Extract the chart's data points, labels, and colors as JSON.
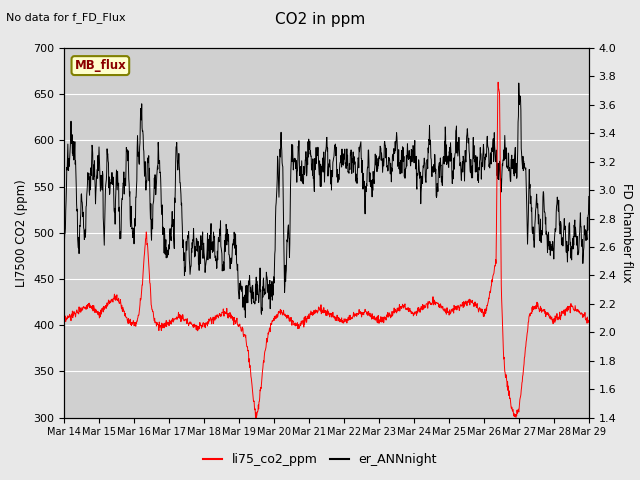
{
  "title": "CO2 in ppm",
  "top_left_text": "No data for f_FD_Flux",
  "ylabel_left": "LI7500 CO2 (ppm)",
  "ylabel_right": "FD Chamber flux",
  "ylim_left": [
    300,
    700
  ],
  "ylim_right": [
    1.4,
    4.0
  ],
  "yticks_left": [
    300,
    350,
    400,
    450,
    500,
    550,
    600,
    650,
    700
  ],
  "yticks_right": [
    1.4,
    1.6,
    1.8,
    2.0,
    2.2,
    2.4,
    2.6,
    2.8,
    3.0,
    3.2,
    3.4,
    3.6,
    3.8,
    4.0
  ],
  "xtick_labels": [
    "Mar 14",
    "Mar 15",
    "Mar 16",
    "Mar 17",
    "Mar 18",
    "Mar 19",
    "Mar 20",
    "Mar 21",
    "Mar 22",
    "Mar 23",
    "Mar 24",
    "Mar 25",
    "Mar 26",
    "Mar 27",
    "Mar 28",
    "Mar 29"
  ],
  "box_label": "MB_flux",
  "legend_entries": [
    "li75_co2_ppm",
    "er_ANNnight"
  ],
  "line_colors": [
    "red",
    "black"
  ],
  "background_color": "#e8e8e8",
  "plot_bg_color": "#d0d0d0",
  "grid_color": "white",
  "n_days": 15,
  "n_points": 1500,
  "red_t": [
    0,
    0.1,
    0.2,
    0.3,
    0.4,
    0.5,
    0.6,
    0.7,
    0.8,
    0.9,
    1.0,
    1.1,
    1.2,
    1.3,
    1.4,
    1.5,
    1.6,
    1.7,
    1.8,
    1.9,
    2.0,
    2.05,
    2.1,
    2.15,
    2.2,
    2.25,
    2.3,
    2.35,
    2.4,
    2.45,
    2.5,
    2.6,
    2.7,
    2.8,
    2.9,
    3.0,
    3.1,
    3.2,
    3.3,
    3.4,
    3.5,
    3.6,
    3.7,
    3.8,
    3.9,
    4.0,
    4.1,
    4.2,
    4.3,
    4.4,
    4.5,
    4.6,
    4.7,
    4.8,
    4.9,
    5.0,
    5.05,
    5.1,
    5.15,
    5.2,
    5.25,
    5.3,
    5.35,
    5.4,
    5.45,
    5.5,
    5.55,
    5.6,
    5.65,
    5.7,
    5.8,
    5.9,
    6.0,
    6.1,
    6.2,
    6.3,
    6.4,
    6.5,
    6.6,
    6.7,
    6.8,
    6.9,
    7.0,
    7.1,
    7.2,
    7.3,
    7.4,
    7.5,
    7.6,
    7.7,
    7.8,
    7.9,
    8.0,
    8.1,
    8.2,
    8.3,
    8.4,
    8.5,
    8.6,
    8.7,
    8.8,
    8.9,
    9.0,
    9.1,
    9.2,
    9.3,
    9.4,
    9.5,
    9.6,
    9.7,
    9.8,
    9.9,
    10.0,
    10.1,
    10.2,
    10.3,
    10.4,
    10.5,
    10.6,
    10.7,
    10.8,
    10.9,
    11.0,
    11.1,
    11.2,
    11.3,
    11.4,
    11.5,
    11.6,
    11.7,
    11.8,
    11.9,
    12.0,
    12.05,
    12.1,
    12.15,
    12.2,
    12.25,
    12.3,
    12.35,
    12.4,
    12.45,
    12.5,
    12.55,
    12.6,
    12.7,
    12.8,
    12.9,
    13.0,
    13.1,
    13.2,
    13.3,
    13.4,
    13.5,
    13.6,
    13.7,
    13.8,
    13.9,
    14.0,
    14.1,
    14.2,
    14.3,
    14.4,
    14.5,
    14.6,
    14.7,
    14.8,
    14.9,
    15.0
  ],
  "red_v": [
    405,
    407,
    410,
    412,
    415,
    418,
    420,
    422,
    420,
    415,
    410,
    415,
    420,
    425,
    428,
    430,
    425,
    415,
    408,
    403,
    400,
    402,
    405,
    415,
    430,
    450,
    480,
    500,
    480,
    450,
    420,
    405,
    400,
    398,
    400,
    402,
    405,
    408,
    410,
    408,
    405,
    402,
    400,
    398,
    400,
    400,
    402,
    405,
    408,
    410,
    412,
    415,
    412,
    408,
    404,
    400,
    398,
    395,
    390,
    385,
    375,
    360,
    345,
    325,
    310,
    300,
    310,
    325,
    340,
    360,
    385,
    400,
    408,
    412,
    415,
    412,
    408,
    405,
    402,
    400,
    402,
    405,
    410,
    412,
    415,
    418,
    416,
    414,
    412,
    410,
    408,
    406,
    404,
    406,
    408,
    410,
    412,
    414,
    415,
    413,
    410,
    407,
    405,
    406,
    408,
    410,
    412,
    415,
    418,
    420,
    418,
    415,
    412,
    415,
    418,
    420,
    422,
    424,
    425,
    423,
    420,
    416,
    413,
    415,
    418,
    420,
    422,
    424,
    425,
    423,
    420,
    416,
    413,
    415,
    420,
    430,
    440,
    450,
    460,
    470,
    660,
    650,
    440,
    380,
    350,
    330,
    310,
    300,
    310,
    340,
    380,
    410,
    418,
    420,
    418,
    415,
    412,
    408,
    405,
    408,
    412,
    415,
    418,
    420,
    418,
    415,
    412,
    408,
    405
  ],
  "black_t": [
    0,
    0.05,
    0.1,
    0.15,
    0.2,
    0.25,
    0.3,
    0.35,
    0.4,
    0.45,
    0.5,
    0.55,
    0.6,
    0.65,
    0.7,
    0.75,
    0.8,
    0.85,
    0.9,
    0.95,
    1.0,
    1.05,
    1.1,
    1.15,
    1.2,
    1.25,
    1.3,
    1.35,
    1.4,
    1.45,
    1.5,
    1.55,
    1.6,
    1.65,
    1.7,
    1.75,
    1.8,
    1.85,
    1.9,
    1.95,
    2.0,
    2.05,
    2.1,
    2.15,
    2.2,
    2.25,
    2.3,
    2.35,
    2.4,
    2.45,
    2.5,
    2.55,
    2.6,
    2.65,
    2.7,
    2.75,
    2.8,
    2.85,
    2.9,
    2.95,
    3.0,
    3.05,
    3.1,
    3.15,
    3.2,
    3.25,
    3.3,
    3.35,
    3.4,
    3.45,
    3.5,
    3.55,
    3.6,
    3.65,
    3.7,
    3.75,
    3.8,
    3.85,
    3.9,
    3.95,
    4.0,
    4.05,
    4.1,
    4.15,
    4.2,
    4.25,
    4.3,
    4.35,
    4.4,
    4.45,
    4.5,
    4.55,
    4.6,
    4.65,
    4.7,
    4.75,
    4.8,
    4.85,
    4.9,
    4.95,
    5.0,
    5.05,
    5.1,
    5.15,
    5.2,
    5.25,
    5.3,
    5.35,
    5.4,
    5.45,
    5.5,
    5.55,
    5.6,
    5.65,
    5.7,
    5.75,
    5.8,
    5.85,
    5.9,
    5.95,
    6.0,
    6.05,
    6.1,
    6.15,
    6.2,
    6.25,
    6.3,
    6.35,
    6.4,
    6.45,
    6.5,
    6.55,
    6.6,
    6.65,
    6.7,
    6.75,
    6.8,
    6.85,
    6.9,
    6.95,
    7.0,
    7.05,
    7.1,
    7.15,
    7.2,
    7.25,
    7.3,
    7.35,
    7.4,
    7.45,
    7.5,
    7.55,
    7.6,
    7.65,
    7.7,
    7.75,
    7.8,
    7.85,
    7.9,
    7.95,
    8.0,
    8.05,
    8.1,
    8.15,
    8.2,
    8.25,
    8.3,
    8.35,
    8.4,
    8.45,
    8.5,
    8.55,
    8.6,
    8.65,
    8.7,
    8.75,
    8.8,
    8.85,
    8.9,
    8.95,
    9.0,
    9.05,
    9.1,
    9.15,
    9.2,
    9.25,
    9.3,
    9.35,
    9.4,
    9.45,
    9.5,
    9.55,
    9.6,
    9.65,
    9.7,
    9.75,
    9.8,
    9.85,
    9.9,
    9.95,
    10.0,
    10.05,
    10.1,
    10.15,
    10.2,
    10.25,
    10.3,
    10.35,
    10.4,
    10.45,
    10.5,
    10.55,
    10.6,
    10.65,
    10.7,
    10.75,
    10.8,
    10.85,
    10.9,
    10.95,
    11.0,
    11.05,
    11.1,
    11.15,
    11.2,
    11.25,
    11.3,
    11.35,
    11.4,
    11.45,
    11.5,
    11.55,
    11.6,
    11.65,
    11.7,
    11.75,
    11.8,
    11.85,
    11.9,
    11.95,
    12.0,
    12.05,
    12.1,
    12.15,
    12.2,
    12.25,
    12.3,
    12.35,
    12.4,
    12.45,
    12.5,
    12.55,
    12.6,
    12.65,
    12.7,
    12.75,
    12.8,
    12.85,
    12.9,
    12.95,
    13.0,
    13.05,
    13.1,
    13.15,
    13.2,
    13.25,
    13.3,
    13.35,
    13.4,
    13.45,
    13.5,
    13.55,
    13.6,
    13.65,
    13.7,
    13.75,
    13.8,
    13.85,
    13.9,
    13.95,
    14.0,
    14.05,
    14.1,
    14.15,
    14.2,
    14.25,
    14.3,
    14.35,
    14.4,
    14.45,
    14.5,
    14.55,
    14.6,
    14.65,
    14.7,
    14.75,
    14.8,
    14.85,
    14.9,
    14.95,
    15.0
  ],
  "black_v": [
    480,
    520,
    590,
    570,
    610,
    580,
    600,
    560,
    480,
    500,
    540,
    510,
    490,
    540,
    570,
    540,
    590,
    570,
    540,
    560,
    590,
    550,
    560,
    490,
    560,
    590,
    540,
    560,
    560,
    510,
    560,
    560,
    490,
    530,
    560,
    550,
    590,
    560,
    520,
    500,
    500,
    520,
    600,
    580,
    640,
    610,
    570,
    540,
    590,
    560,
    490,
    530,
    560,
    550,
    590,
    560,
    520,
    500,
    490,
    480,
    480,
    500,
    520,
    490,
    600,
    580,
    570,
    540,
    490,
    460,
    480,
    500,
    460,
    480,
    500,
    480,
    490,
    470,
    480,
    490,
    480,
    460,
    490,
    480,
    500,
    480,
    490,
    460,
    480,
    500,
    490,
    460,
    480,
    500,
    490,
    460,
    480,
    500,
    490,
    460,
    440,
    450,
    430,
    420,
    440,
    430,
    450,
    420,
    440,
    420,
    450,
    430,
    440,
    420,
    440,
    430,
    450,
    440,
    430,
    440,
    440,
    510,
    570,
    560,
    600,
    580,
    440,
    460,
    510,
    490,
    600,
    580,
    590,
    560,
    590,
    560,
    570,
    560,
    580,
    570,
    600,
    580,
    570,
    560,
    580,
    590,
    570,
    560,
    580,
    570,
    600,
    580,
    570,
    560,
    580,
    590,
    570,
    560,
    580,
    570,
    590,
    570,
    580,
    560,
    590,
    570,
    580,
    560,
    575,
    590,
    580,
    560,
    540,
    560,
    580,
    560,
    540,
    560,
    580,
    570,
    580,
    590,
    570,
    580,
    590,
    570,
    580,
    570,
    580,
    590,
    595,
    580,
    570,
    580,
    590,
    570,
    580,
    590,
    570,
    580,
    590,
    580,
    560,
    580,
    540,
    560,
    580,
    560,
    580,
    600,
    580,
    560,
    580,
    540,
    560,
    580,
    560,
    580,
    600,
    580,
    580,
    600,
    560,
    570,
    610,
    580,
    590,
    560,
    580,
    570,
    600,
    610,
    570,
    560,
    590,
    570,
    580,
    560,
    590,
    570,
    590,
    580,
    600,
    580,
    580,
    600,
    590,
    580,
    560,
    570,
    560,
    580,
    590,
    580,
    580,
    560,
    580,
    570,
    580,
    560,
    660,
    640,
    560,
    580,
    570,
    490,
    560,
    530,
    500,
    490,
    540,
    520,
    500,
    490,
    540,
    520,
    500,
    490,
    480,
    470,
    490,
    510,
    545,
    520,
    500,
    490,
    510,
    490,
    480,
    510,
    480,
    490,
    510,
    490,
    480,
    510,
    490,
    480,
    510,
    490,
    540
  ]
}
